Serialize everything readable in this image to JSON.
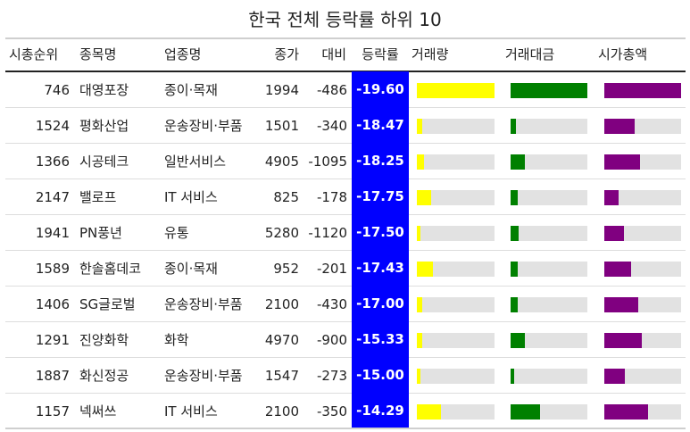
{
  "chart_data": {
    "type": "table",
    "title": "한국 전체 등락률 하위 10",
    "columns": [
      "시총순위",
      "종목명",
      "업종명",
      "종가",
      "대비",
      "등락률",
      "거래량",
      "거래대금",
      "시가총액"
    ],
    "colors": {
      "rate_bg": "#0000ff",
      "volume_bar": "#ffff00",
      "trade_value_bar": "#008000",
      "market_cap_bar": "#800080",
      "bar_track": "#e2e2e2"
    },
    "rows": [
      {
        "rank": "746",
        "name": "대영포장",
        "sector": "종이·목재",
        "close": "1994",
        "change": "-486",
        "rate": "-19.60",
        "volume": 1.0,
        "trade_value": 1.0,
        "market_cap": 1.0
      },
      {
        "rank": "1524",
        "name": "평화산업",
        "sector": "운송장비·부품",
        "close": "1501",
        "change": "-340",
        "rate": "-18.47",
        "volume": 0.07,
        "trade_value": 0.07,
        "market_cap": 0.39
      },
      {
        "rank": "1366",
        "name": "시공테크",
        "sector": "일반서비스",
        "close": "4905",
        "change": "-1095",
        "rate": "-18.25",
        "volume": 0.09,
        "trade_value": 0.19,
        "market_cap": 0.46
      },
      {
        "rank": "2147",
        "name": "밸로프",
        "sector": "IT 서비스",
        "close": "825",
        "change": "-178",
        "rate": "-17.75",
        "volume": 0.18,
        "trade_value": 0.09,
        "market_cap": 0.19
      },
      {
        "rank": "1941",
        "name": "PN풍년",
        "sector": "유통",
        "close": "5280",
        "change": "-1120",
        "rate": "-17.50",
        "volume": 0.05,
        "trade_value": 0.11,
        "market_cap": 0.25
      },
      {
        "rank": "1589",
        "name": "한솔홈데코",
        "sector": "종이·목재",
        "close": "952",
        "change": "-201",
        "rate": "-17.43",
        "volume": 0.21,
        "trade_value": 0.09,
        "market_cap": 0.35
      },
      {
        "rank": "1406",
        "name": "SG글로벌",
        "sector": "운송장비·부품",
        "close": "2100",
        "change": "-430",
        "rate": "-17.00",
        "volume": 0.07,
        "trade_value": 0.09,
        "market_cap": 0.44
      },
      {
        "rank": "1291",
        "name": "진양화학",
        "sector": "화학",
        "close": "4970",
        "change": "-900",
        "rate": "-15.33",
        "volume": 0.07,
        "trade_value": 0.19,
        "market_cap": 0.49
      },
      {
        "rank": "1887",
        "name": "화신정공",
        "sector": "운송장비·부품",
        "close": "1547",
        "change": "-273",
        "rate": "-15.00",
        "volume": 0.05,
        "trade_value": 0.05,
        "market_cap": 0.27
      },
      {
        "rank": "1157",
        "name": "넥써쓰",
        "sector": "IT 서비스",
        "close": "2100",
        "change": "-350",
        "rate": "-14.29",
        "volume": 0.31,
        "trade_value": 0.38,
        "market_cap": 0.57
      }
    ]
  }
}
